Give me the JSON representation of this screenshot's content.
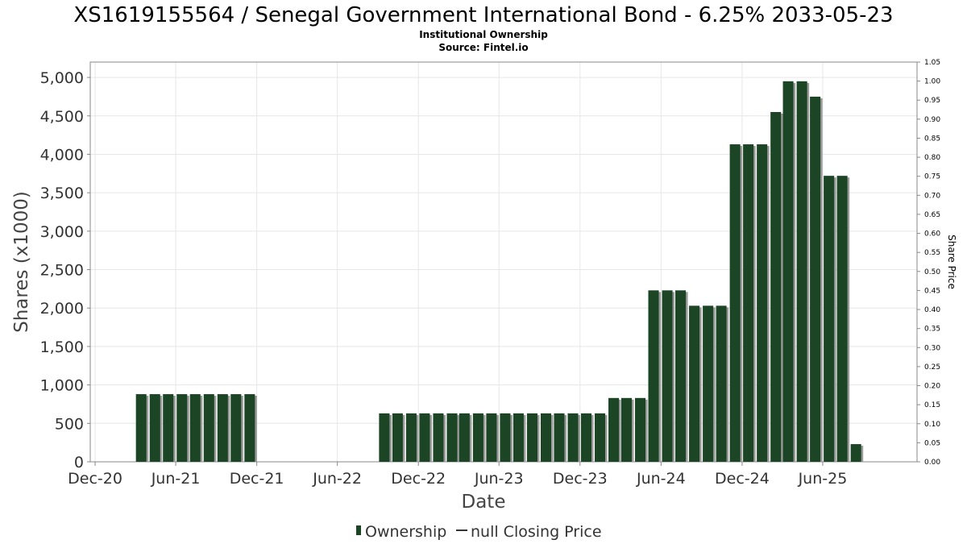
{
  "chart_data": {
    "type": "bar",
    "title": "XS1619155564 / Senegal Government International Bond - 6.25% 2033-05-23",
    "subtitle_lines": [
      "Institutional Ownership",
      "Source: Fintel.io"
    ],
    "xlabel": "Date",
    "ylabel": "Shares (x1000)",
    "y2label": "Share Price",
    "ylim": [
      0,
      5200
    ],
    "y2lim": [
      0,
      1.05
    ],
    "x_range": [
      "2020-11-20",
      "2025-12-31"
    ],
    "yticks": [
      0,
      500,
      1000,
      1500,
      2000,
      2500,
      3000,
      3500,
      4000,
      4500,
      5000
    ],
    "ytick_labels": [
      "0",
      "500",
      "1,000",
      "1,500",
      "2,000",
      "2,500",
      "3,000",
      "3,500",
      "4,000",
      "4,500",
      "5,000"
    ],
    "y2ticks": [
      0,
      0.05,
      0.1,
      0.15,
      0.2,
      0.25,
      0.3,
      0.35,
      0.4,
      0.45,
      0.5,
      0.55,
      0.6,
      0.65,
      0.7,
      0.75,
      0.8,
      0.85,
      0.9,
      0.95,
      1.0,
      1.05
    ],
    "y2tick_labels": [
      "0.00",
      "0.05",
      "0.10",
      "0.15",
      "0.20",
      "0.25",
      "0.30",
      "0.35",
      "0.40",
      "0.45",
      "0.50",
      "0.55",
      "0.60",
      "0.65",
      "0.70",
      "0.75",
      "0.80",
      "0.85",
      "0.90",
      "0.95",
      "1.00",
      "1.05"
    ],
    "xticks": [
      "2020-12-01",
      "2021-06-01",
      "2021-12-01",
      "2022-06-01",
      "2022-12-01",
      "2023-06-01",
      "2023-12-01",
      "2024-06-01",
      "2024-12-01",
      "2025-06-01"
    ],
    "xtick_labels": [
      "Dec-20",
      "Jun-21",
      "Dec-21",
      "Jun-22",
      "Dec-22",
      "Jun-23",
      "Dec-23",
      "Jun-24",
      "Dec-24",
      "Jun-25"
    ],
    "grid": true,
    "legend_position": "bottom",
    "legend": [
      "Ownership",
      "null Closing Price"
    ],
    "series": [
      {
        "name": "Ownership",
        "color": "#1b4524",
        "dates": [
          "2021-03-15",
          "2021-04-15",
          "2021-05-15",
          "2021-06-15",
          "2021-07-15",
          "2021-08-15",
          "2021-09-15",
          "2021-10-15",
          "2021-11-15",
          "2022-09-15",
          "2022-10-15",
          "2022-11-15",
          "2022-12-15",
          "2023-01-15",
          "2023-02-15",
          "2023-03-15",
          "2023-04-15",
          "2023-05-15",
          "2023-06-15",
          "2023-07-15",
          "2023-08-15",
          "2023-09-15",
          "2023-10-15",
          "2023-11-15",
          "2023-12-15",
          "2024-01-15",
          "2024-02-15",
          "2024-03-15",
          "2024-04-15",
          "2024-05-15",
          "2024-06-15",
          "2024-07-15",
          "2024-08-15",
          "2024-09-15",
          "2024-10-15",
          "2024-11-15",
          "2024-12-15",
          "2025-01-15",
          "2025-02-15",
          "2025-03-15",
          "2025-04-15",
          "2025-05-15",
          "2025-06-15",
          "2025-07-15",
          "2025-08-15",
          "2025-09-15"
        ],
        "values": [
          880,
          880,
          880,
          880,
          880,
          880,
          880,
          880,
          880,
          630,
          630,
          630,
          630,
          630,
          630,
          630,
          630,
          630,
          630,
          630,
          630,
          630,
          630,
          630,
          630,
          630,
          830,
          830,
          830,
          2230,
          2230,
          2230,
          2030,
          2030,
          2030,
          4130,
          4130,
          4130,
          4550,
          4950,
          4950,
          4750,
          3720,
          3720,
          230,
          null
        ]
      },
      {
        "name": "null Closing Price",
        "color": "#333333",
        "values": []
      }
    ]
  }
}
